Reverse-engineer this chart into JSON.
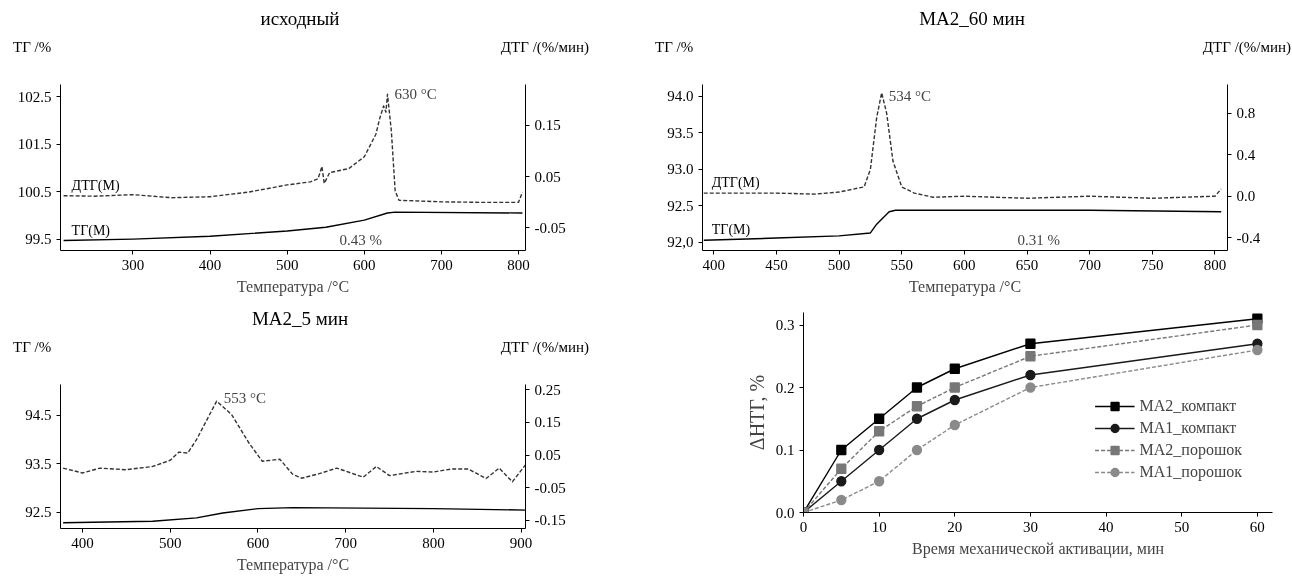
{
  "chart_data": [
    {
      "type": "line",
      "title": "исходный",
      "xlabel": "Температура /°C",
      "ylabel": "ТГ /%",
      "y2label": "ДТГ /(%/мин)",
      "xlim": [
        206,
        809
      ],
      "xticks": [
        300,
        400,
        500,
        600,
        700,
        800
      ],
      "ylim": [
        99.26,
        102.76
      ],
      "yticks": [
        99.5,
        100.5,
        101.5,
        102.5
      ],
      "y2lim": [
        -0.094,
        0.23
      ],
      "y2ticks": [
        0.15,
        0.05,
        -0.05
      ],
      "grid": false,
      "legend": false,
      "series": [
        {
          "name": "ДТГ(М)",
          "color": "#333333",
          "axis": "y2",
          "line_style": "dashed",
          "x": [
            210,
            250,
            300,
            350,
            400,
            450,
            500,
            530,
            540,
            545,
            548,
            555,
            580,
            600,
            615,
            620,
            625,
            628,
            630,
            635,
            640,
            645,
            700,
            750,
            800,
            805
          ],
          "values": [
            0.013,
            0.012,
            0.015,
            0.009,
            0.011,
            0.02,
            0.034,
            0.04,
            0.046,
            0.07,
            0.037,
            0.058,
            0.066,
            0.089,
            0.133,
            0.164,
            0.188,
            0.176,
            0.211,
            0.14,
            0.022,
            0.004,
            0.001,
            0.0,
            0.0,
            0.02
          ]
        },
        {
          "name": "ТГ(М)",
          "color": "#000000",
          "line_style": "solid",
          "x": [
            210,
            300,
            400,
            500,
            550,
            600,
            630,
            640,
            805
          ],
          "values": [
            99.47,
            99.5,
            99.56,
            99.67,
            99.75,
            99.9,
            100.05,
            100.07,
            100.05
          ]
        }
      ],
      "annotations": [
        {
          "text": "630 °C",
          "x": 630,
          "y": 102.55
        },
        "0.43 %"
      ]
    },
    {
      "type": "line",
      "title": "MA2_60 мин",
      "xlabel": "Температура /°C",
      "ylabel": "ТГ /%",
      "y2label": "ДТГ /(%/мин)",
      "xlim": [
        391,
        810
      ],
      "xticks": [
        400,
        450,
        500,
        550,
        600,
        650,
        700,
        750,
        800
      ],
      "ylim": [
        91.89,
        94.16
      ],
      "yticks": [
        {
          "value": 92,
          "label": "92,0"
        },
        92.5,
        {
          "value": 93,
          "label": "93.0"
        },
        93.5,
        {
          "value": 94,
          "label": "94.0"
        }
      ],
      "y2lim": [
        -0.525,
        1.08
      ],
      "y2ticks": [
        -0.4,
        {
          "value": 0,
          "label": "0.0"
        },
        0.4,
        0.8
      ],
      "grid": false,
      "legend": false,
      "series": [
        {
          "name": "ДТГ(М)",
          "color": "#333333",
          "axis": "y2",
          "line_style": "dashed",
          "x": [
            392,
            420,
            450,
            480,
            500,
            520,
            525,
            530,
            534,
            538,
            543,
            550,
            560,
            575,
            600,
            650,
            700,
            750,
            800,
            805
          ],
          "values": [
            0.03,
            0.03,
            0.03,
            0.02,
            0.04,
            0.09,
            0.26,
            0.76,
            1.0,
            0.8,
            0.34,
            0.09,
            0.03,
            -0.01,
            0.0,
            -0.02,
            0.0,
            -0.02,
            0.0,
            0.07
          ]
        },
        {
          "name": "ТГ(М)",
          "color": "#000000",
          "line_style": "solid",
          "x": [
            392,
            450,
            500,
            525,
            530,
            540,
            545,
            600,
            700,
            805
          ],
          "values": [
            92.03,
            92.06,
            92.09,
            92.13,
            92.25,
            92.42,
            92.44,
            92.44,
            92.44,
            92.42
          ]
        }
      ],
      "annotations": [
        {
          "text": "534 °C",
          "x": 534,
          "y": 94.0
        },
        "0.31 %"
      ]
    },
    {
      "type": "line",
      "title": "MA2_5 мин",
      "xlabel": "Температура /°C",
      "ylabel": "ТГ /%",
      "y2label": "ДТГ /(%/мин)",
      "xlim": [
        375,
        905
      ],
      "xticks": [
        400,
        500,
        600,
        700,
        800,
        900
      ],
      "ylim": [
        92.16,
        95.13
      ],
      "yticks": [
        92.5,
        93.5,
        94.5
      ],
      "y2lim": [
        -0.175,
        0.266
      ],
      "y2ticks": [
        0.25,
        0.15,
        0.05,
        -0.05,
        -0.15
      ],
      "grid": false,
      "legend": false,
      "series": [
        {
          "color": "#333333",
          "axis": "y2",
          "line_style": "dashed",
          "x": [
            378,
            400,
            420,
            450,
            480,
            500,
            510,
            520,
            530,
            553,
            570,
            590,
            605,
            625,
            640,
            650,
            670,
            690,
            720,
            735,
            750,
            780,
            800,
            820,
            840,
            860,
            875,
            890,
            905
          ],
          "values": [
            0.01,
            -0.005,
            0.01,
            0.005,
            0.015,
            0.034,
            0.059,
            0.056,
            0.097,
            0.215,
            0.174,
            0.086,
            0.031,
            0.037,
            -0.01,
            -0.021,
            -0.007,
            0.01,
            -0.018,
            0.015,
            -0.013,
            0.0,
            -0.002,
            0.007,
            0.007,
            -0.022,
            0.01,
            -0.032,
            0.02
          ]
        },
        {
          "color": "#000000",
          "line_style": "solid",
          "x": [
            378,
            480,
            530,
            560,
            600,
            640,
            800,
            905
          ],
          "values": [
            92.28,
            92.31,
            92.38,
            92.48,
            92.57,
            92.59,
            92.57,
            92.54
          ]
        }
      ],
      "annotations": [
        {
          "text": "553 °C",
          "x": 553,
          "y": 94.85
        }
      ]
    },
    {
      "type": "line",
      "xlabel": "Время механической активации, мин",
      "ylabel": "ΔHТГ, %",
      "x": [
        0,
        5,
        10,
        15,
        20,
        30,
        60
      ],
      "xlim": [
        0,
        62
      ],
      "xticks": [
        0,
        10,
        20,
        30,
        40,
        50,
        60
      ],
      "ylim": [
        0,
        0.32
      ],
      "yticks": [
        {
          "value": 0,
          "label": "0.0"
        },
        0.1,
        0.2,
        0.3
      ],
      "grid": false,
      "legend": "bottom right",
      "series": [
        {
          "name": "MA2_компакт",
          "color": "#000000",
          "marker": "square",
          "line_style": "solid",
          "values": [
            0,
            0.1,
            0.15,
            0.2,
            0.23,
            0.27,
            0.31
          ]
        },
        {
          "name": "MA1_компакт",
          "color": "#1a1a1a",
          "marker": "circle",
          "line_style": "solid",
          "values": [
            0,
            0.05,
            0.1,
            0.15,
            0.18,
            0.22,
            0.27
          ]
        },
        {
          "name": "MA2_порошок",
          "color": "#777777",
          "marker": "square",
          "line_style": "dashed",
          "values": [
            0,
            0.07,
            0.13,
            0.17,
            0.2,
            0.25,
            0.3
          ]
        },
        {
          "name": "MA1_порошок",
          "color": "#8a8a8a",
          "marker": "circle",
          "line_style": "dashed",
          "values": [
            0,
            0.02,
            0.05,
            0.1,
            0.14,
            0.2,
            0.26
          ]
        }
      ]
    }
  ]
}
